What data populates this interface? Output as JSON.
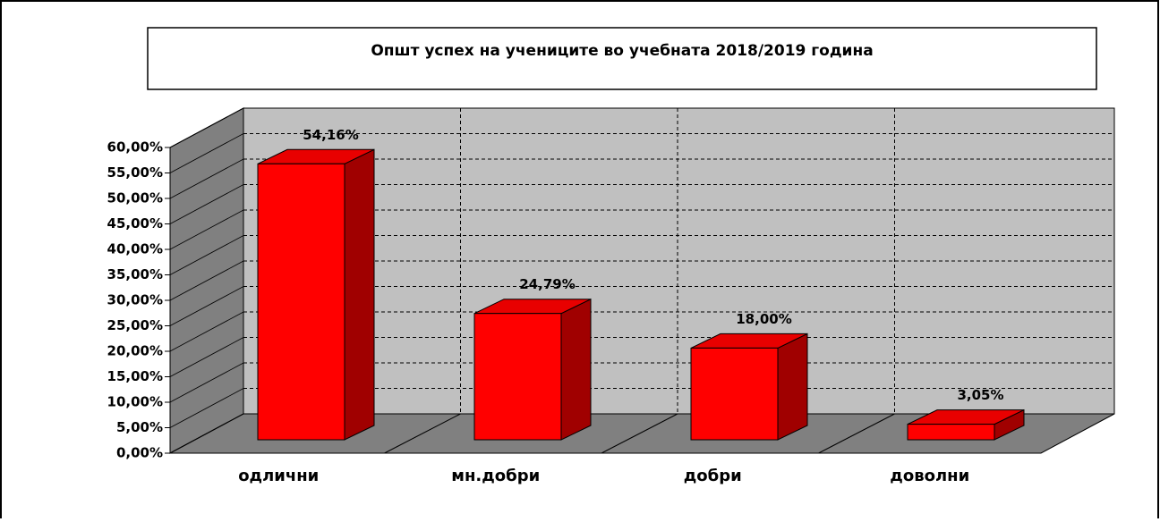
{
  "chart_data": {
    "type": "bar3d",
    "title": "Општ успех на учениците  во  учебната 2018/2019 година",
    "categories": [
      "одлични",
      "мн.добри",
      "добри",
      "доволни"
    ],
    "values": [
      54.16,
      24.79,
      18.0,
      3.05
    ],
    "value_labels": [
      "54,16%",
      "24,79%",
      "18,00%",
      "3,05%"
    ],
    "color": "#ff0000",
    "ylim": [
      0,
      60
    ],
    "yticks": [
      {
        "value": 0,
        "label": "0,00%"
      },
      {
        "value": 5,
        "label": "5,00%"
      },
      {
        "value": 10,
        "label": "10,00%"
      },
      {
        "value": 15,
        "label": "15,00%"
      },
      {
        "value": 20,
        "label": "20,00%"
      },
      {
        "value": 25,
        "label": "25,00%"
      },
      {
        "value": 30,
        "label": "30,00%"
      },
      {
        "value": 35,
        "label": "35,00%"
      },
      {
        "value": 40,
        "label": "40,00%"
      },
      {
        "value": 45,
        "label": "45,00%"
      },
      {
        "value": 50,
        "label": "50,00%"
      },
      {
        "value": 55,
        "label": "55,00%"
      },
      {
        "value": 60,
        "label": "60,00%"
      }
    ],
    "grid": true
  }
}
